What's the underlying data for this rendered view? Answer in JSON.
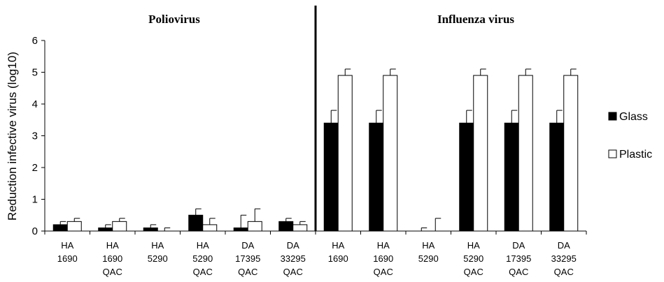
{
  "chart_data": {
    "type": "bar",
    "ylabel": "Reduction infective virus (log10)",
    "ylim": [
      0,
      6
    ],
    "yticks": [
      "0",
      "1",
      "2",
      "3",
      "4",
      "5",
      "6"
    ],
    "grid": false,
    "legend_position": "right",
    "panels": [
      {
        "title": "Poliovirus",
        "categories": [
          0,
          1,
          2,
          3,
          4,
          5
        ]
      },
      {
        "title": "Influenza virus",
        "categories": [
          6,
          7,
          8,
          9,
          10,
          11
        ]
      }
    ],
    "categories": [
      [
        "HA",
        "1690"
      ],
      [
        "HA",
        "1690",
        "QAC"
      ],
      [
        "HA",
        "5290"
      ],
      [
        "HA",
        "5290",
        "QAC"
      ],
      [
        "DA",
        "17395",
        "QAC"
      ],
      [
        "DA",
        "33295",
        "QAC"
      ],
      [
        "HA",
        "1690"
      ],
      [
        "HA",
        "1690",
        "QAC"
      ],
      [
        "HA",
        "5290"
      ],
      [
        "HA",
        "5290",
        "QAC"
      ],
      [
        "DA",
        "17395",
        "QAC"
      ],
      [
        "DA",
        "33295",
        "QAC"
      ]
    ],
    "series": [
      {
        "name": "Glass",
        "color": "#000000",
        "values": [
          0.2,
          0.1,
          0.1,
          0.5,
          0.1,
          0.3,
          3.4,
          3.4,
          0.0,
          3.4,
          3.4,
          3.4
        ],
        "errors": [
          0.1,
          0.1,
          0.1,
          0.2,
          0.4,
          0.1,
          0.4,
          0.4,
          0.1,
          0.4,
          0.4,
          0.4
        ]
      },
      {
        "name": "Plastic",
        "color": "#ffffff",
        "values": [
          0.3,
          0.3,
          0.0,
          0.2,
          0.3,
          0.2,
          4.9,
          4.9,
          0.0,
          4.9,
          4.9,
          4.9
        ],
        "errors": [
          0.1,
          0.1,
          0.1,
          0.2,
          0.4,
          0.1,
          0.2,
          0.2,
          0.4,
          0.2,
          0.2,
          0.2
        ]
      }
    ]
  }
}
